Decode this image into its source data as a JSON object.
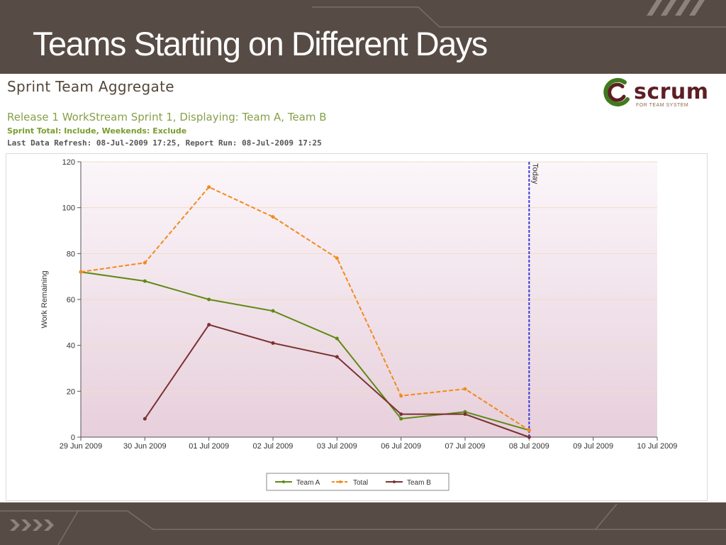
{
  "slide": {
    "title": "Teams Starting on Different Days"
  },
  "report": {
    "title": "Sprint Team Aggregate",
    "subtitle": "Release 1 WorkStream Sprint 1, Displaying: Team A, Team B",
    "options": "Sprint Total: Include, Weekends: Exclude",
    "refresh": "Last Data Refresh: 08-Jul-2009 17:25, Report Run: 08-Jul-2009 17:25"
  },
  "logo": {
    "word": "scrum",
    "tagline": "FOR TEAM SYSTEM",
    "colors": {
      "ring_green": "#3f7b1e",
      "ring_brown": "#5c1f23"
    }
  },
  "colors": {
    "bar_background": "#574c45",
    "team_a": "#5e8a14",
    "total": "#f28a1e",
    "team_b": "#7a3232",
    "today_line": "#3b3bd6"
  },
  "chart_data": {
    "type": "line",
    "title": "",
    "ylabel": "Work Remaining",
    "xlabel": "",
    "categories": [
      "29 Jun 2009",
      "30 Jun 2009",
      "01 Jul 2009",
      "02 Jul 2009",
      "03 Jul 2009",
      "06 Jul 2009",
      "07 Jul 2009",
      "08 Jul 2009",
      "09 Jul 2009",
      "10 Jul 2009"
    ],
    "ylim": [
      0,
      120
    ],
    "yticks": [
      0,
      20,
      40,
      60,
      80,
      100,
      120
    ],
    "grid": true,
    "legend_position": "bottom",
    "marker": {
      "label": "Today",
      "category": "08 Jul 2009"
    },
    "series": [
      {
        "name": "Team A",
        "style": "solid",
        "values": [
          72,
          68,
          60,
          55,
          43,
          8,
          11,
          3,
          null,
          null
        ]
      },
      {
        "name": "Total",
        "style": "dashed",
        "values": [
          72,
          76,
          109,
          96,
          78,
          18,
          21,
          3,
          null,
          null
        ]
      },
      {
        "name": "Team B",
        "style": "solid",
        "values": [
          null,
          8,
          49,
          41,
          35,
          10,
          10,
          0,
          null,
          null
        ]
      }
    ]
  }
}
